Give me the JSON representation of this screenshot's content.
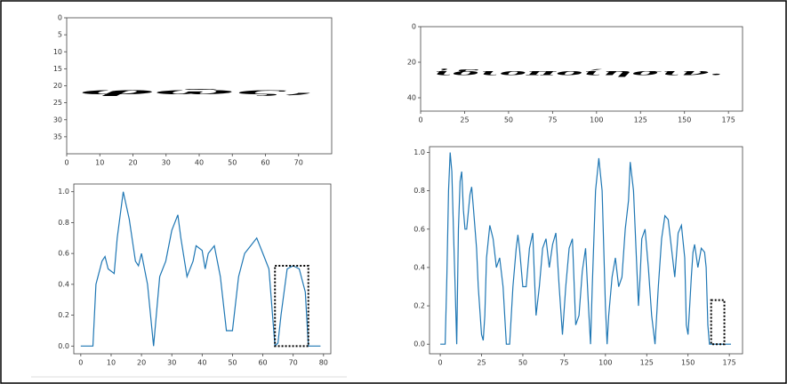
{
  "chart_data": [
    {
      "type": "image",
      "text": "φῶς,",
      "xlim": [
        0,
        80
      ],
      "ylim": [
        0,
        40
      ],
      "xticks": [
        0,
        10,
        20,
        30,
        40,
        50,
        60,
        70
      ],
      "yticks": [
        0,
        5,
        10,
        15,
        20,
        25,
        30,
        35
      ]
    },
    {
      "type": "line",
      "color": "#1f77b4",
      "xlim": [
        -2.3,
        82.4
      ],
      "ylim": [
        -0.05,
        1.05
      ],
      "xticks": [
        0,
        10,
        20,
        30,
        40,
        50,
        60,
        70,
        80
      ],
      "yticks": [
        {
          "value": 0,
          "label": "0.0"
        },
        {
          "value": 0.2,
          "label": "0.2"
        },
        {
          "value": 0.4,
          "label": "0.4"
        },
        {
          "value": 0.6,
          "label": "0.6"
        },
        {
          "value": 0.8,
          "label": "0.8"
        },
        {
          "value": 1,
          "label": "1.0"
        }
      ],
      "x": [
        0,
        2,
        4,
        5,
        7,
        8,
        9,
        11,
        12,
        14,
        16,
        18,
        19,
        20,
        22,
        24,
        26,
        28,
        30,
        32,
        33,
        35,
        37,
        38,
        40,
        41,
        42,
        44,
        46,
        48,
        50,
        52,
        54,
        56,
        58,
        60,
        62,
        63,
        64,
        65,
        66,
        68,
        70,
        72,
        74,
        75,
        77,
        79
      ],
      "values": [
        0,
        0,
        0,
        0.4,
        0.55,
        0.58,
        0.5,
        0.47,
        0.7,
        1.0,
        0.82,
        0.55,
        0.52,
        0.6,
        0.4,
        0.0,
        0.45,
        0.55,
        0.75,
        0.85,
        0.7,
        0.45,
        0.55,
        0.65,
        0.62,
        0.5,
        0.6,
        0.65,
        0.45,
        0.1,
        0.1,
        0.45,
        0.6,
        0.65,
        0.7,
        0.6,
        0.5,
        0.25,
        0.0,
        0.02,
        0.2,
        0.5,
        0.52,
        0.5,
        0.35,
        0.0,
        0.0,
        0.0
      ],
      "highlight": {
        "x": [
          64,
          75
        ],
        "y": [
          0,
          0.52
        ]
      }
    },
    {
      "type": "image",
      "text": "ἰδιοποίησιν.",
      "xlim": [
        0,
        183
      ],
      "ylim": [
        0,
        47.5
      ],
      "xticks": [
        0,
        25,
        50,
        75,
        100,
        125,
        150,
        175
      ],
      "yticks": [
        0,
        20,
        40
      ]
    },
    {
      "type": "line",
      "color": "#1f77b4",
      "xlim": [
        -6.5,
        183
      ],
      "ylim": [
        -0.05,
        1.03
      ],
      "xticks": [
        0,
        25,
        50,
        75,
        100,
        125,
        150,
        175
      ],
      "yticks": [
        {
          "value": 0,
          "label": "0.0"
        },
        {
          "value": 0.2,
          "label": "0.2"
        },
        {
          "value": 0.4,
          "label": "0.4"
        },
        {
          "value": 0.6,
          "label": "0.6"
        },
        {
          "value": 0.8,
          "label": "0.8"
        },
        {
          "value": 1,
          "label": "1.0"
        }
      ],
      "x": [
        0,
        3,
        4,
        5,
        6,
        7,
        8,
        9,
        10,
        11,
        12,
        13,
        14,
        15,
        16,
        18,
        19,
        20,
        22,
        23,
        25,
        26,
        27,
        28,
        30,
        32,
        34,
        36,
        38,
        40,
        42,
        44,
        46,
        47,
        48,
        50,
        52,
        54,
        56,
        57,
        58,
        60,
        62,
        64,
        66,
        68,
        70,
        72,
        74,
        76,
        78,
        80,
        82,
        84,
        86,
        88,
        90,
        91,
        92,
        94,
        96,
        98,
        100,
        101,
        102,
        104,
        106,
        108,
        110,
        112,
        114,
        115,
        117,
        119,
        120,
        121,
        122,
        124,
        126,
        128,
        130,
        132,
        134,
        136,
        138,
        140,
        142,
        144,
        146,
        148,
        149,
        150,
        151,
        152,
        153,
        154,
        156,
        158,
        160,
        161,
        162,
        163,
        165,
        170,
        176
      ],
      "values": [
        0,
        0,
        0.35,
        0.8,
        1.0,
        0.9,
        0.6,
        0.3,
        0.0,
        0.6,
        0.85,
        0.9,
        0.7,
        0.6,
        0.6,
        0.78,
        0.82,
        0.72,
        0.5,
        0.3,
        0.05,
        0.02,
        0.15,
        0.45,
        0.62,
        0.55,
        0.4,
        0.45,
        0.3,
        0.0,
        0.0,
        0.3,
        0.5,
        0.57,
        0.5,
        0.3,
        0.3,
        0.5,
        0.58,
        0.35,
        0.15,
        0.3,
        0.5,
        0.55,
        0.4,
        0.52,
        0.58,
        0.3,
        0.05,
        0.3,
        0.5,
        0.55,
        0.1,
        0.15,
        0.38,
        0.5,
        0.15,
        0.0,
        0.3,
        0.8,
        0.97,
        0.8,
        0.2,
        0.0,
        0.15,
        0.35,
        0.45,
        0.3,
        0.35,
        0.6,
        0.75,
        0.95,
        0.8,
        0.4,
        0.2,
        0.35,
        0.55,
        0.6,
        0.4,
        0.15,
        0.0,
        0.3,
        0.55,
        0.67,
        0.65,
        0.5,
        0.35,
        0.58,
        0.62,
        0.45,
        0.1,
        0.05,
        0.2,
        0.35,
        0.48,
        0.52,
        0.4,
        0.5,
        0.48,
        0.4,
        0.1,
        0.0,
        0.0,
        0.0,
        0.0
      ],
      "highlight": {
        "x": [
          164,
          172
        ],
        "y": [
          0,
          0.23
        ]
      }
    }
  ]
}
